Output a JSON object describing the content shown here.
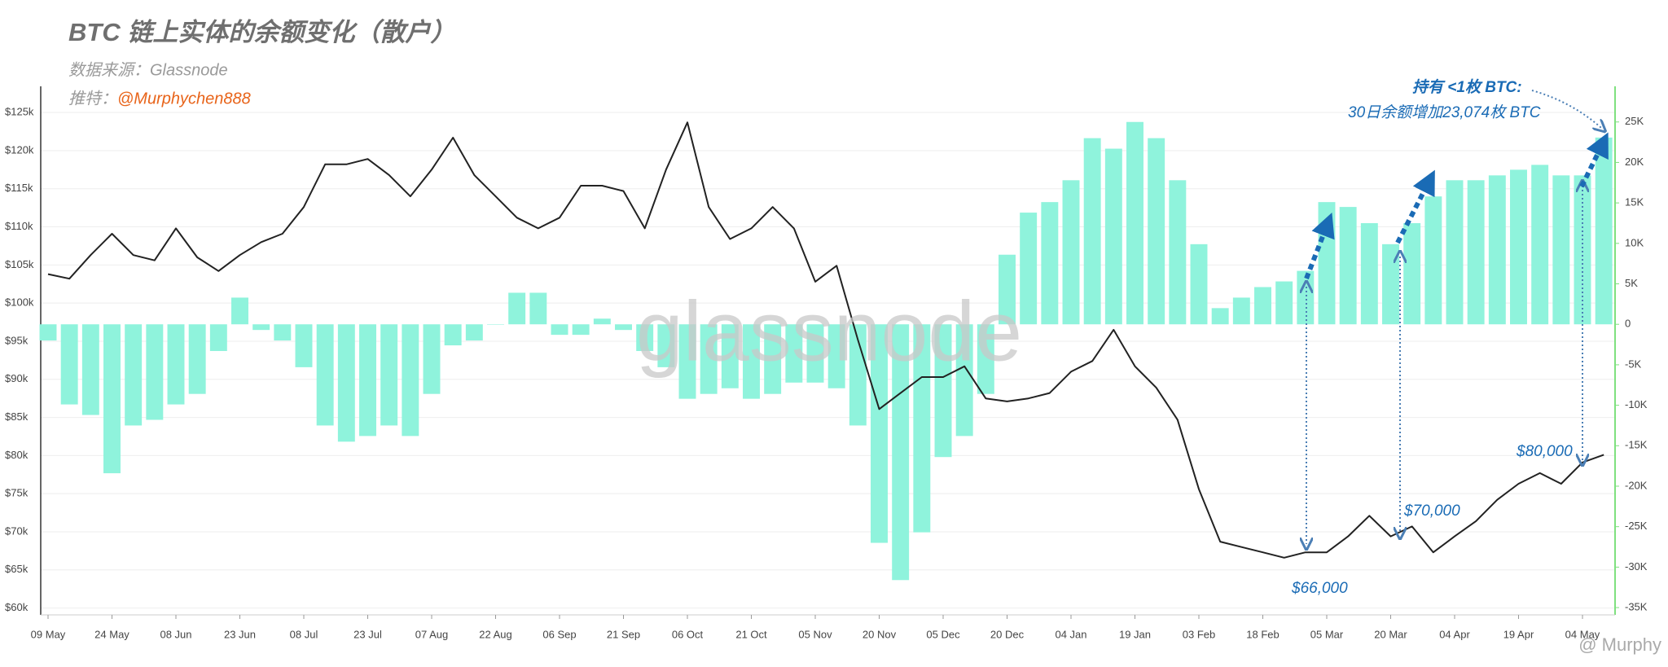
{
  "chart_data": {
    "type": "combo",
    "title": "BTC 链上实体的余额变化（散户）",
    "subtitle": "数据来源：Glassnode",
    "credit_label": "推特：",
    "credit_handle": "@Murphychen888",
    "watermark": "glassnode",
    "footer": "@ Murphy",
    "annotations": {
      "holder": "持有 <1枚 BTC:",
      "increase": "30日余额增加23,074枚 BTC",
      "price_1": "$66,000",
      "price_2": "$70,000",
      "price_3": "$80,000"
    },
    "categories": [
      "09 May",
      null,
      null,
      "24 May",
      null,
      null,
      "08 Jun",
      null,
      null,
      "23 Jun",
      null,
      null,
      "08 Jul",
      null,
      null,
      "23 Jul",
      null,
      null,
      "07 Aug",
      null,
      null,
      "22 Aug",
      null,
      null,
      "06 Sep",
      null,
      null,
      "21 Sep",
      null,
      null,
      "06 Oct",
      null,
      null,
      "21 Oct",
      null,
      null,
      "05 Nov",
      null,
      null,
      "20 Nov",
      null,
      null,
      "05 Dec",
      null,
      null,
      "20 Dec",
      null,
      null,
      "04 Jan",
      null,
      null,
      "19 Jan",
      null,
      null,
      "03 Feb",
      null,
      null,
      "18 Feb",
      null,
      null,
      "05 Mar",
      null,
      null,
      "20 Mar",
      null,
      null,
      "04 Apr",
      null,
      null,
      "19 Apr",
      null,
      null,
      "04 May",
      null
    ],
    "series": [
      {
        "type": "bar",
        "axis": "y2",
        "color": "#8ff3dc",
        "values": [
          -2000,
          -9900,
          -11200,
          -18400,
          -12500,
          -11800,
          -9900,
          -8600,
          -3300,
          3300,
          -700,
          -2000,
          -5300,
          -12500,
          -14500,
          -13800,
          -12500,
          -13800,
          -8600,
          -2600,
          -2000,
          0,
          3900,
          3900,
          -1300,
          -1300,
          700,
          -700,
          -3300,
          -5300,
          -9200,
          -8600,
          -7900,
          -9200,
          -8600,
          -7200,
          -7200,
          -7900,
          -12500,
          -27000,
          -31600,
          -25700,
          -16400,
          -13800,
          -8600,
          8600,
          13800,
          15100,
          17800,
          23000,
          21700,
          25000,
          23000,
          17800,
          9900,
          2000,
          3300,
          4600,
          5300,
          6600,
          15100,
          14500,
          12500,
          9900,
          12500,
          15800,
          17800,
          17800,
          18400,
          19100,
          19700,
          18400,
          18400,
          23074
        ]
      },
      {
        "type": "line",
        "axis": "y",
        "color": "#222222",
        "values": [
          103800,
          103200,
          106300,
          109100,
          106300,
          105600,
          109800,
          106000,
          104200,
          106300,
          108000,
          109100,
          112600,
          118200,
          118200,
          118900,
          116800,
          114000,
          117500,
          121700,
          116800,
          114000,
          111200,
          109800,
          111200,
          115400,
          115400,
          114700,
          109800,
          117500,
          123700,
          112600,
          108400,
          109800,
          112600,
          109800,
          102800,
          104900,
          95200,
          86100,
          88200,
          90300,
          90300,
          91700,
          87500,
          87100,
          87500,
          88200,
          91000,
          92400,
          96500,
          91700,
          88900,
          84700,
          75600,
          68700,
          68000,
          67300,
          66600,
          67300,
          67300,
          69400,
          72100,
          69400,
          70700,
          67300,
          69400,
          71400,
          74200,
          76300,
          77700,
          76300,
          79100,
          80100
        ]
      }
    ],
    "ylim": [
      59100,
      127900
    ],
    "yticks": [
      {
        "value": 60000,
        "label": "$60k"
      },
      {
        "value": 65000,
        "label": "$65k"
      },
      {
        "value": 70000,
        "label": "$70k"
      },
      {
        "value": 75000,
        "label": "$75k"
      },
      {
        "value": 80000,
        "label": "$80k"
      },
      {
        "value": 85000,
        "label": "$85k"
      },
      {
        "value": 90000,
        "label": "$90k"
      },
      {
        "value": 95000,
        "label": "$95k"
      },
      {
        "value": 100000,
        "label": "$100k"
      },
      {
        "value": 105000,
        "label": "$105k"
      },
      {
        "value": 110000,
        "label": "$110k"
      },
      {
        "value": 115000,
        "label": "$115k"
      },
      {
        "value": 120000,
        "label": "$120k"
      },
      {
        "value": 125000,
        "label": "$125k"
      }
    ],
    "y2lim": [
      -35900,
      28900
    ],
    "y2ticks": [
      {
        "value": -35000,
        "label": "-35K"
      },
      {
        "value": -30000,
        "label": "-30K"
      },
      {
        "value": -25000,
        "label": "-25K"
      },
      {
        "value": -20000,
        "label": "-20K"
      },
      {
        "value": -15000,
        "label": "-15K"
      },
      {
        "value": -10000,
        "label": "-10K"
      },
      {
        "value": -5000,
        "label": "-5K"
      },
      0,
      {
        "value": 5000,
        "label": "5K"
      },
      {
        "value": 10000,
        "label": "10K"
      },
      {
        "value": 15000,
        "label": "15K"
      },
      {
        "value": 20000,
        "label": "20K"
      },
      {
        "value": 25000,
        "label": "25K"
      }
    ],
    "grid": true
  }
}
